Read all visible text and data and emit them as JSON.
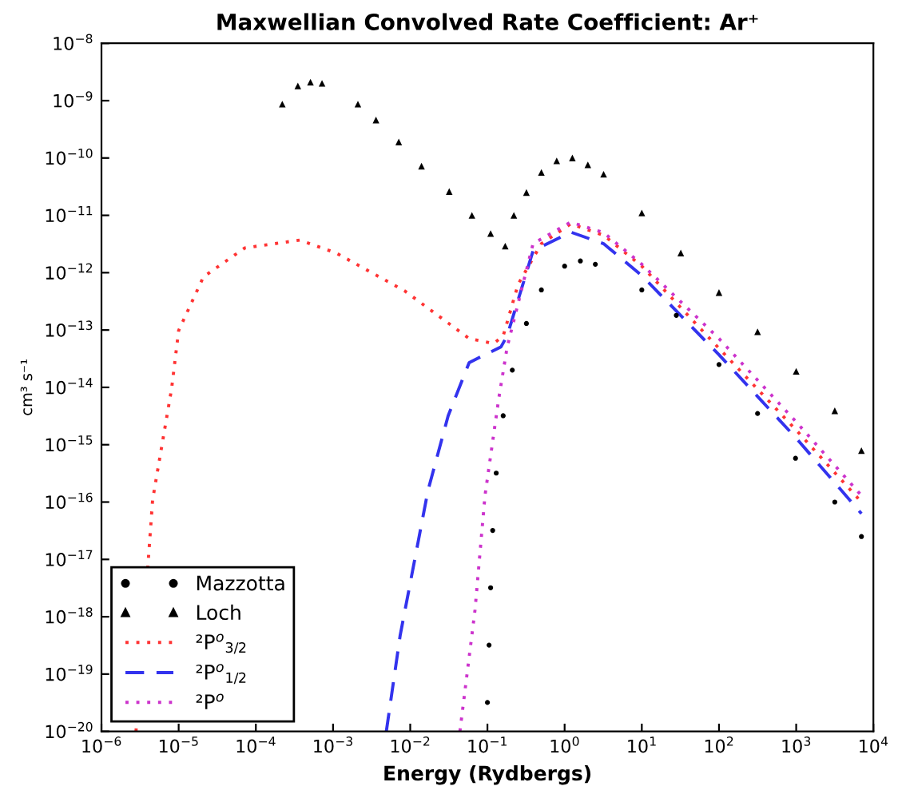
{
  "chart_data": {
    "type": "line",
    "title": "Maxwellian Convolved Rate Coefficient: Ar⁺",
    "xlabel": "Energy (Rydbergs)",
    "ylabel": "cm³ s⁻¹",
    "log": "xy",
    "grid": false,
    "legend": "bottom left",
    "xlim": [
      1e-06,
      10000
    ],
    "ylim": [
      1e-20,
      1e-08
    ],
    "xticks": [
      {
        "value": 1e-06,
        "label": "10$^{−6}$"
      },
      {
        "value": 1e-05,
        "label": "10$^{−5}$"
      },
      {
        "value": 0.0001,
        "label": "10$^{−4}$"
      },
      {
        "value": 0.001,
        "label": "10$^{−3}$"
      },
      {
        "value": 0.01,
        "label": "10$^{−2}$"
      },
      {
        "value": 0.1,
        "label": "10$^{−1}$"
      },
      {
        "value": 1,
        "label": "10$^{0}$"
      },
      {
        "value": 10,
        "label": "10$^{1}$"
      },
      {
        "value": 100,
        "label": "10$^{2}$"
      },
      {
        "value": 1000,
        "label": "10$^{3}$"
      },
      {
        "value": 10000,
        "label": "10$^{4}$"
      }
    ],
    "yticks": [
      {
        "value": 1e-20,
        "label": "10$^{−20}$"
      },
      {
        "value": 1e-19,
        "label": "10$^{−19}$"
      },
      {
        "value": 1e-18,
        "label": "10$^{−18}$"
      },
      {
        "value": 1e-17,
        "label": "10$^{−17}$"
      },
      {
        "value": 1e-16,
        "label": "10$^{−16}$"
      },
      {
        "value": 1e-15,
        "label": "10$^{−15}$"
      },
      {
        "value": 1e-14,
        "label": "10$^{−14}$"
      },
      {
        "value": 1e-13,
        "label": "10$^{−13}$"
      },
      {
        "value": 1e-12,
        "label": "10$^{−12}$"
      },
      {
        "value": 1e-11,
        "label": "10$^{−11}$"
      },
      {
        "value": 1e-10,
        "label": "10$^{−10}$"
      },
      {
        "value": 1e-09,
        "label": "10$^{−9}$"
      },
      {
        "value": 1e-08,
        "label": "10$^{−8}$"
      }
    ],
    "series": [
      {
        "name": "Mazzotta",
        "type": "scatter",
        "marker": "circle",
        "color": "#000000",
        "x": [
          0.1,
          0.105,
          0.11,
          0.117,
          0.13,
          0.16,
          0.21,
          0.32,
          0.5,
          1.0,
          1.6,
          2.5,
          10,
          28,
          100,
          316,
          980,
          3162,
          7000
        ],
        "values": [
          3.2e-20,
          3.2e-19,
          3.2e-18,
          3.2e-17,
          3.2e-16,
          3.2e-15,
          2e-14,
          1.3e-13,
          5e-13,
          1.3e-12,
          1.6e-12,
          1.4e-12,
          5e-13,
          1.8e-13,
          2.5e-14,
          3.5e-15,
          5.8e-16,
          1e-16,
          2.5e-17
        ]
      },
      {
        "name": "Loch",
        "type": "scatter",
        "marker": "triangle",
        "color": "#000000",
        "x": [
          0.00022,
          0.00035,
          0.00051,
          0.00072,
          0.0021,
          0.0036,
          0.0071,
          0.014,
          0.032,
          0.063,
          0.11,
          0.17,
          0.22,
          0.32,
          0.5,
          0.79,
          1.26,
          2.0,
          3.2,
          10,
          32,
          100,
          316,
          1000,
          3162,
          7000
        ],
        "values": [
          8.7e-10,
          1.8e-09,
          2.1e-09,
          2e-09,
          8.7e-10,
          4.6e-10,
          1.9e-10,
          7.2e-11,
          2.6e-11,
          1e-11,
          4.8e-12,
          2.9e-12,
          1e-11,
          2.5e-11,
          5.6e-11,
          8.9e-11,
          1e-10,
          7.6e-11,
          5.2e-11,
          1.1e-11,
          2.2e-12,
          4.5e-13,
          9.3e-14,
          1.9e-14,
          3.9e-15,
          7.9e-16
        ]
      },
      {
        "name": "²P$^{o}$$_{3/2}$",
        "line_style": "dotted",
        "color": "#ff3333",
        "x": [
          2.8e-06,
          4.6e-06,
          8.1e-06,
          1e-05,
          2.1e-05,
          7.2e-05,
          0.00037,
          0.0011,
          0.0085,
          0.058,
          0.12,
          0.16,
          0.25,
          0.5,
          1.2,
          3.2,
          10,
          100,
          1000,
          7000
        ],
        "values": [
          1e-20,
          1.1e-16,
          9.5e-15,
          9.8e-14,
          8.5e-13,
          2.7e-12,
          3.7e-12,
          2.2e-12,
          4.8e-13,
          7.1e-14,
          5.8e-14,
          7.9e-14,
          6.3e-13,
          3.2e-12,
          7.1e-12,
          4.5e-12,
          1.3e-12,
          4.8e-14,
          1.8e-15,
          1e-16
        ]
      },
      {
        "name": "²P$^{o}$$_{1/2}$",
        "line_style": "dashed",
        "color": "#3333ee",
        "x": [
          0.0049,
          0.0074,
          0.017,
          0.031,
          0.058,
          0.15,
          0.18,
          0.39,
          1.2,
          3.2,
          10,
          100,
          1000,
          7000
        ],
        "values": [
          1e-20,
          4.7e-19,
          1.6e-16,
          3.2e-15,
          2.7e-14,
          5.1e-14,
          7.9e-14,
          2.4e-12,
          5.1e-12,
          3.2e-12,
          8.9e-13,
          3.7e-14,
          1.3e-15,
          6.3e-17
        ]
      },
      {
        "name": "²P$^{o}$",
        "line_style": "dotted",
        "color": "#cc33cc",
        "x": [
          0.044,
          0.069,
          0.093,
          0.14,
          0.18,
          0.39,
          1.2,
          3.2,
          10,
          100,
          1000,
          7000
        ],
        "values": [
          1e-20,
          1.3e-18,
          1.3e-16,
          6.3e-15,
          5e-14,
          3.2e-12,
          7.6e-12,
          5e-12,
          1.4e-12,
          7.1e-14,
          2.5e-15,
          1.3e-16
        ]
      }
    ]
  }
}
